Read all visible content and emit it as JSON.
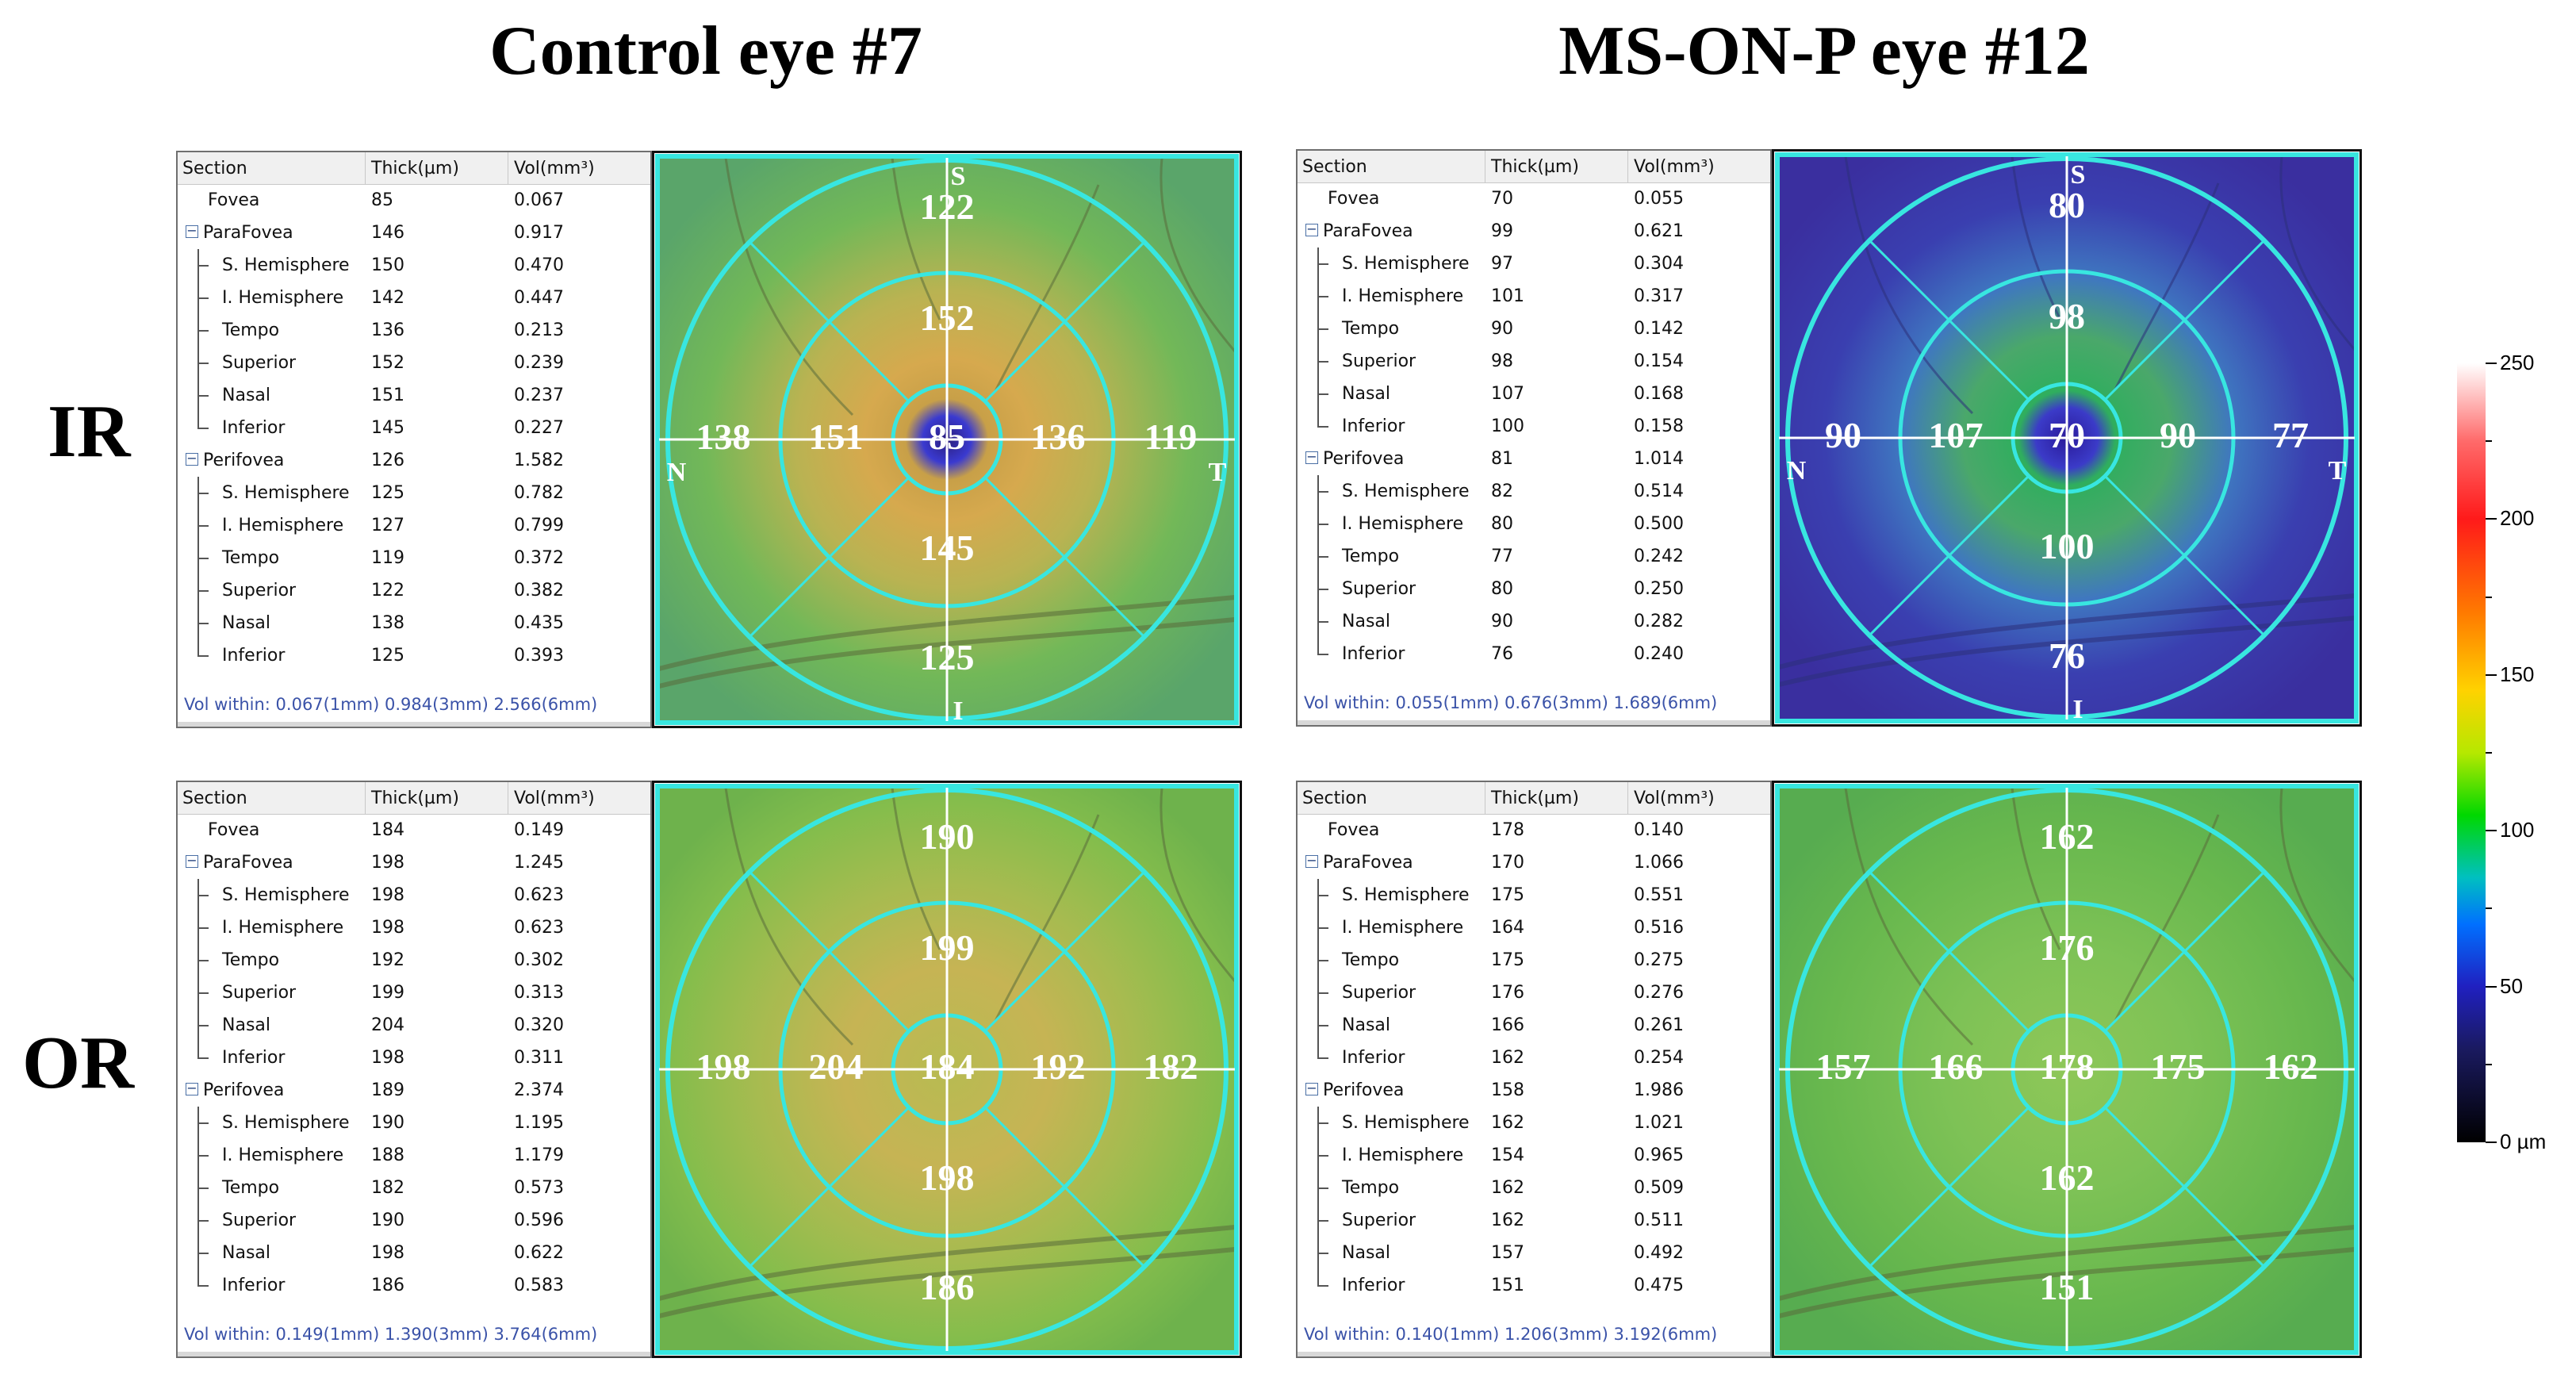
{
  "titles": {
    "left": "Control eye #7",
    "right": "MS-ON-P eye #12"
  },
  "row_labels": {
    "ir": "IR",
    "or": "OR"
  },
  "table_headers": {
    "section": "Section",
    "thick": "Thick(µm)",
    "vol": "Vol(mm³)"
  },
  "compass": {
    "superior": "S",
    "inferior": "I",
    "nasal": "N",
    "temporal": "T"
  },
  "colorbar": {
    "ticks": [
      "250",
      "200",
      "150",
      "100",
      "50",
      "0 µm"
    ],
    "range_um": [
      0,
      250
    ]
  },
  "panels": [
    {
      "id": "control-ir",
      "rows": [
        {
          "label": "Fovea",
          "thick": "85",
          "vol": "0.067"
        },
        {
          "label": "ParaFovea",
          "thick": "146",
          "vol": "0.917"
        },
        {
          "label": "S. Hemisphere",
          "thick": "150",
          "vol": "0.470"
        },
        {
          "label": "I. Hemisphere",
          "thick": "142",
          "vol": "0.447"
        },
        {
          "label": "Tempo",
          "thick": "136",
          "vol": "0.213"
        },
        {
          "label": "Superior",
          "thick": "152",
          "vol": "0.239"
        },
        {
          "label": "Nasal",
          "thick": "151",
          "vol": "0.237"
        },
        {
          "label": "Inferior",
          "thick": "145",
          "vol": "0.227"
        },
        {
          "label": "Perifovea",
          "thick": "126",
          "vol": "1.582"
        },
        {
          "label": "S. Hemisphere",
          "thick": "125",
          "vol": "0.782"
        },
        {
          "label": "I. Hemisphere",
          "thick": "127",
          "vol": "0.799"
        },
        {
          "label": "Tempo",
          "thick": "119",
          "vol": "0.372"
        },
        {
          "label": "Superior",
          "thick": "122",
          "vol": "0.382"
        },
        {
          "label": "Nasal",
          "thick": "138",
          "vol": "0.435"
        },
        {
          "label": "Inferior",
          "thick": "125",
          "vol": "0.393"
        }
      ],
      "footer": "Vol within: 0.067(1mm) 0.984(3mm) 2.566(6mm)",
      "map": {
        "center": "85",
        "para_sup": "152",
        "para_inf": "145",
        "para_nasal": "151",
        "para_temp": "136",
        "peri_sup": "122",
        "peri_inf": "125",
        "peri_nasal": "138",
        "peri_temp": "119"
      }
    },
    {
      "id": "ms-ir",
      "rows": [
        {
          "label": "Fovea",
          "thick": "70",
          "vol": "0.055"
        },
        {
          "label": "ParaFovea",
          "thick": "99",
          "vol": "0.621"
        },
        {
          "label": "S. Hemisphere",
          "thick": "97",
          "vol": "0.304"
        },
        {
          "label": "I. Hemisphere",
          "thick": "101",
          "vol": "0.317"
        },
        {
          "label": "Tempo",
          "thick": "90",
          "vol": "0.142"
        },
        {
          "label": "Superior",
          "thick": "98",
          "vol": "0.154"
        },
        {
          "label": "Nasal",
          "thick": "107",
          "vol": "0.168"
        },
        {
          "label": "Inferior",
          "thick": "100",
          "vol": "0.158"
        },
        {
          "label": "Perifovea",
          "thick": "81",
          "vol": "1.014"
        },
        {
          "label": "S. Hemisphere",
          "thick": "82",
          "vol": "0.514"
        },
        {
          "label": "I. Hemisphere",
          "thick": "80",
          "vol": "0.500"
        },
        {
          "label": "Tempo",
          "thick": "77",
          "vol": "0.242"
        },
        {
          "label": "Superior",
          "thick": "80",
          "vol": "0.250"
        },
        {
          "label": "Nasal",
          "thick": "90",
          "vol": "0.282"
        },
        {
          "label": "Inferior",
          "thick": "76",
          "vol": "0.240"
        }
      ],
      "footer": "Vol within: 0.055(1mm) 0.676(3mm) 1.689(6mm)",
      "map": {
        "center": "70",
        "para_sup": "98",
        "para_inf": "100",
        "para_nasal": "107",
        "para_temp": "90",
        "peri_sup": "80",
        "peri_inf": "76",
        "peri_nasal": "90",
        "peri_temp": "77"
      }
    },
    {
      "id": "control-or",
      "rows": [
        {
          "label": "Fovea",
          "thick": "184",
          "vol": "0.149"
        },
        {
          "label": "ParaFovea",
          "thick": "198",
          "vol": "1.245"
        },
        {
          "label": "S. Hemisphere",
          "thick": "198",
          "vol": "0.623"
        },
        {
          "label": "I. Hemisphere",
          "thick": "198",
          "vol": "0.623"
        },
        {
          "label": "Tempo",
          "thick": "192",
          "vol": "0.302"
        },
        {
          "label": "Superior",
          "thick": "199",
          "vol": "0.313"
        },
        {
          "label": "Nasal",
          "thick": "204",
          "vol": "0.320"
        },
        {
          "label": "Inferior",
          "thick": "198",
          "vol": "0.311"
        },
        {
          "label": "Perifovea",
          "thick": "189",
          "vol": "2.374"
        },
        {
          "label": "S. Hemisphere",
          "thick": "190",
          "vol": "1.195"
        },
        {
          "label": "I. Hemisphere",
          "thick": "188",
          "vol": "1.179"
        },
        {
          "label": "Tempo",
          "thick": "182",
          "vol": "0.573"
        },
        {
          "label": "Superior",
          "thick": "190",
          "vol": "0.596"
        },
        {
          "label": "Nasal",
          "thick": "198",
          "vol": "0.622"
        },
        {
          "label": "Inferior",
          "thick": "186",
          "vol": "0.583"
        }
      ],
      "footer": "Vol within: 0.149(1mm) 1.390(3mm) 3.764(6mm)",
      "map": {
        "center": "184",
        "para_sup": "199",
        "para_inf": "198",
        "para_nasal": "204",
        "para_temp": "192",
        "peri_sup": "190",
        "peri_inf": "186",
        "peri_nasal": "198",
        "peri_temp": "182"
      }
    },
    {
      "id": "ms-or",
      "rows": [
        {
          "label": "Fovea",
          "thick": "178",
          "vol": "0.140"
        },
        {
          "label": "ParaFovea",
          "thick": "170",
          "vol": "1.066"
        },
        {
          "label": "S. Hemisphere",
          "thick": "175",
          "vol": "0.551"
        },
        {
          "label": "I. Hemisphere",
          "thick": "164",
          "vol": "0.516"
        },
        {
          "label": "Tempo",
          "thick": "175",
          "vol": "0.275"
        },
        {
          "label": "Superior",
          "thick": "176",
          "vol": "0.276"
        },
        {
          "label": "Nasal",
          "thick": "166",
          "vol": "0.261"
        },
        {
          "label": "Inferior",
          "thick": "162",
          "vol": "0.254"
        },
        {
          "label": "Perifovea",
          "thick": "158",
          "vol": "1.986"
        },
        {
          "label": "S. Hemisphere",
          "thick": "162",
          "vol": "1.021"
        },
        {
          "label": "I. Hemisphere",
          "thick": "154",
          "vol": "0.965"
        },
        {
          "label": "Tempo",
          "thick": "162",
          "vol": "0.509"
        },
        {
          "label": "Superior",
          "thick": "162",
          "vol": "0.511"
        },
        {
          "label": "Nasal",
          "thick": "157",
          "vol": "0.492"
        },
        {
          "label": "Inferior",
          "thick": "151",
          "vol": "0.475"
        }
      ],
      "footer": "Vol within: 0.140(1mm) 1.206(3mm) 3.192(6mm)",
      "map": {
        "center": "178",
        "para_sup": "176",
        "para_inf": "162",
        "para_nasal": "166",
        "para_temp": "175",
        "peri_sup": "162",
        "peri_inf": "151",
        "peri_nasal": "157",
        "peri_temp": "162"
      }
    }
  ]
}
